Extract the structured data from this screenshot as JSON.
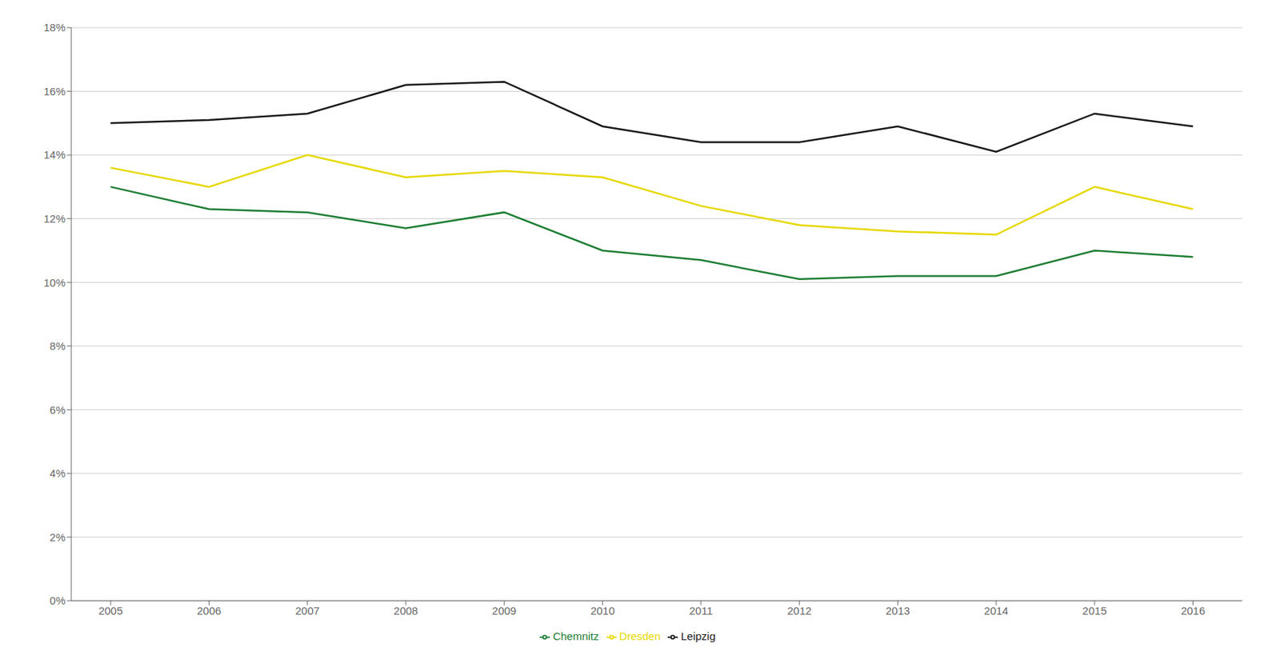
{
  "chart_data": {
    "type": "line",
    "x": [
      2005,
      2006,
      2007,
      2008,
      2009,
      2010,
      2011,
      2012,
      2013,
      2014,
      2015,
      2016
    ],
    "series": [
      {
        "name": "Chemnitz",
        "color": "#1e7e34",
        "values": [
          0.13,
          0.123,
          0.122,
          0.117,
          0.122,
          0.11,
          0.107,
          0.101,
          0.102,
          0.102,
          0.11,
          0.108
        ]
      },
      {
        "name": "Dresden",
        "color": "#e6d800",
        "values": [
          0.136,
          0.13,
          0.14,
          0.133,
          0.135,
          0.133,
          0.124,
          0.118,
          0.116,
          0.115,
          0.13,
          0.123
        ]
      },
      {
        "name": "Leipzig",
        "color": "#1a1a1a",
        "values": [
          0.15,
          0.151,
          0.153,
          0.162,
          0.163,
          0.149,
          0.144,
          0.144,
          0.149,
          0.141,
          0.153,
          0.149
        ]
      }
    ],
    "xlim": [
      2004.6,
      2016.5
    ],
    "xticks": [
      2005,
      2006,
      2007,
      2008,
      2009,
      2010,
      2011,
      2012,
      2013,
      2014,
      2015,
      2016
    ],
    "ylim": [
      0.0,
      0.18
    ],
    "yticks": [
      {
        "value": 0.0,
        "label": "0%"
      },
      {
        "value": 0.02,
        "label": "2%"
      },
      {
        "value": 0.04,
        "label": "4%"
      },
      {
        "value": 0.06,
        "label": "6%"
      },
      {
        "value": 0.08,
        "label": "8%"
      },
      {
        "value": 0.1,
        "label": "10%"
      },
      {
        "value": 0.12,
        "label": "12%"
      },
      {
        "value": 0.14,
        "label": "14%"
      },
      {
        "value": 0.16,
        "label": "16%"
      },
      {
        "value": 0.18,
        "label": "18%"
      }
    ],
    "grid": true,
    "legend": "bottom"
  }
}
